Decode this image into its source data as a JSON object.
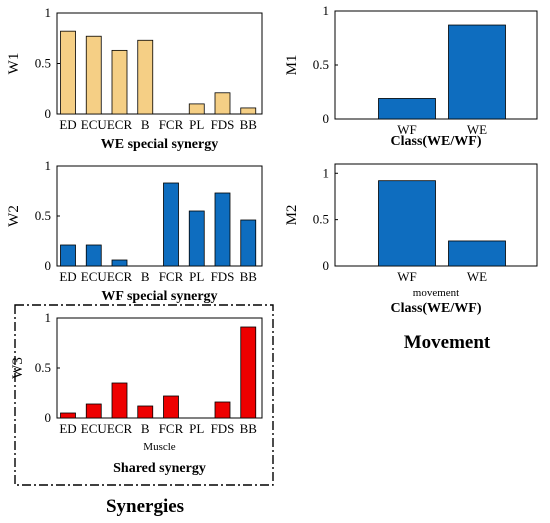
{
  "figure": {
    "synergies_title": "Synergies",
    "movement_title": "Movement",
    "colors": {
      "yellow": "#F5CF85",
      "blue": "#0E6DBF",
      "red": "#EE0000",
      "axis": "#000000"
    }
  },
  "chart_data": [
    {
      "id": "W1",
      "type": "bar",
      "ylabel": "W1",
      "title": "WE special synergy",
      "xlabel": "",
      "categories": [
        "ED",
        "ECU",
        "ECR",
        "B",
        "FCR",
        "PL",
        "FDS",
        "BB"
      ],
      "values": [
        0.82,
        0.77,
        0.63,
        0.73,
        0.0,
        0.1,
        0.21,
        0.06
      ],
      "ylim": [
        0,
        1
      ],
      "yticks": [
        "0",
        "0.5",
        "1"
      ],
      "color": "#F5CF85"
    },
    {
      "id": "W2",
      "type": "bar",
      "ylabel": "W2",
      "title": "WF special synergy",
      "xlabel": "",
      "categories": [
        "ED",
        "ECU",
        "ECR",
        "B",
        "FCR",
        "PL",
        "FDS",
        "BB"
      ],
      "values": [
        0.21,
        0.21,
        0.06,
        0.0,
        0.83,
        0.55,
        0.73,
        0.46
      ],
      "ylim": [
        0,
        1
      ],
      "yticks": [
        "0",
        "0.5",
        "1"
      ],
      "color": "#0E6DBF"
    },
    {
      "id": "W3",
      "type": "bar",
      "ylabel": "W3",
      "title": "Shared synergy",
      "xlabel": "Muscle",
      "categories": [
        "ED",
        "ECU",
        "ECR",
        "B",
        "FCR",
        "PL",
        "FDS",
        "BB"
      ],
      "values": [
        0.05,
        0.14,
        0.35,
        0.12,
        0.22,
        0.0,
        0.16,
        0.91
      ],
      "ylim": [
        0,
        1
      ],
      "yticks": [
        "0",
        "0.5",
        "1"
      ],
      "color": "#EE0000"
    },
    {
      "id": "M1",
      "type": "bar",
      "ylabel": "M1",
      "title": "Class(WE/WF)",
      "xlabel": "",
      "categories": [
        "WF",
        "WE"
      ],
      "values": [
        0.19,
        0.87
      ],
      "ylim": [
        0,
        1
      ],
      "yticks": [
        "0",
        "0.5",
        "1"
      ],
      "color": "#0E6DBF"
    },
    {
      "id": "M2",
      "type": "bar",
      "ylabel": "M2",
      "title": "Class(WE/WF)",
      "xlabel": "movement",
      "categories": [
        "WF",
        "WE"
      ],
      "values": [
        0.92,
        0.27
      ],
      "ylim": [
        0,
        1.1
      ],
      "yticks": [
        "0",
        "0.5",
        "1"
      ],
      "color": "#0E6DBF"
    }
  ]
}
